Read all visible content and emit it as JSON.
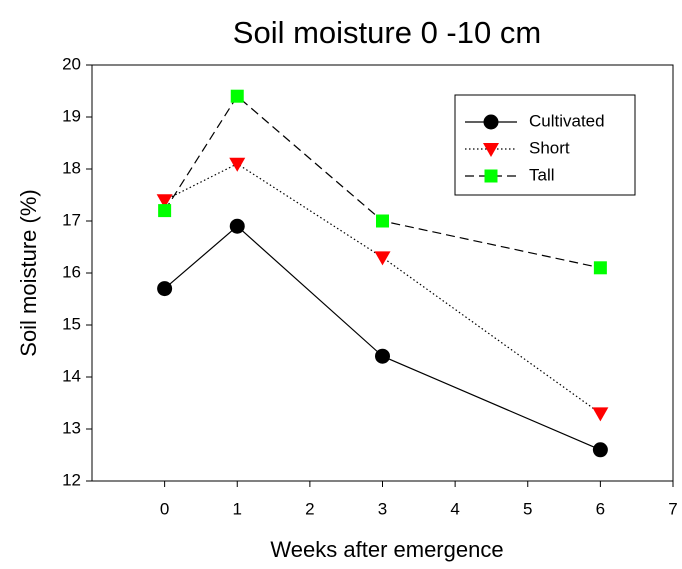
{
  "chart_data": {
    "type": "line",
    "title": "Soil moisture   0 -10 cm",
    "x_label": "Weeks after emergence",
    "y_label": "Soil moisture (%)",
    "x": [
      0,
      1,
      3,
      6
    ],
    "series": [
      {
        "name": "Cultivated",
        "color": "#000000",
        "marker": "circle",
        "linestyle": "solid",
        "values": [
          15.7,
          16.9,
          14.4,
          12.6
        ]
      },
      {
        "name": "Short",
        "color": "#ff0000",
        "marker": "triangle-down",
        "linestyle": "dotted",
        "values": [
          17.4,
          18.1,
          16.3,
          13.3
        ]
      },
      {
        "name": "Tall",
        "color": "#00ff00",
        "marker": "square",
        "linestyle": "dashed",
        "values": [
          17.2,
          19.4,
          17.0,
          16.1
        ]
      }
    ],
    "line_color": "#000000",
    "xlim": [
      -1,
      7
    ],
    "xticks": [
      0,
      1,
      2,
      3,
      4,
      5,
      6,
      7
    ],
    "ylim": [
      12,
      20
    ],
    "yticks": [
      12,
      13,
      14,
      15,
      16,
      17,
      18,
      19,
      20
    ],
    "grid": false,
    "legend": "upper right"
  }
}
